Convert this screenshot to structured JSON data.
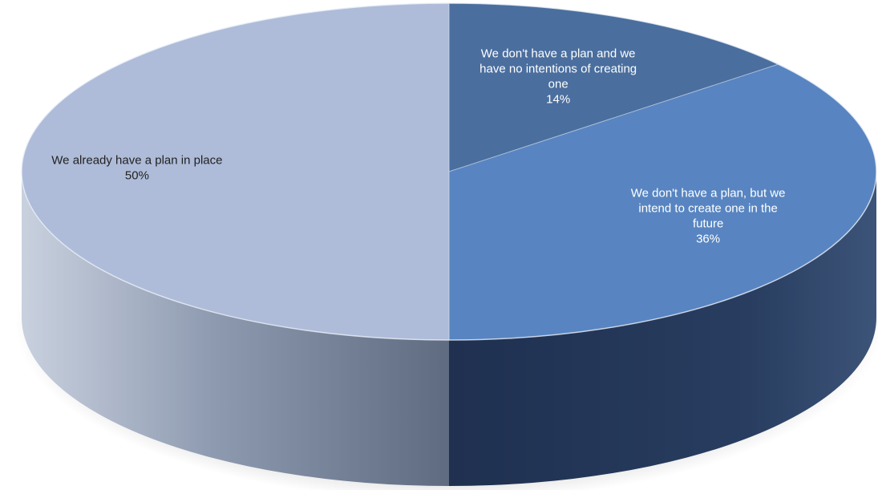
{
  "chart_data": {
    "type": "pie",
    "style": "3d",
    "title": "",
    "legend": "none",
    "slices": [
      {
        "label": "We already have a plan in place",
        "value": 50,
        "value_label": "50%",
        "color": "#aebcd9",
        "label_color": "#222222"
      },
      {
        "label": "We don't have a plan, but we intend to create one in the future",
        "value": 36,
        "value_label": "36%",
        "color": "#5885c1",
        "label_color": "#ffffff"
      },
      {
        "label": "We don't have a plan and we have no intentions of creating one",
        "value": 14,
        "value_label": "14%",
        "color": "#4a6e9e",
        "label_color": "#ffffff"
      }
    ]
  }
}
